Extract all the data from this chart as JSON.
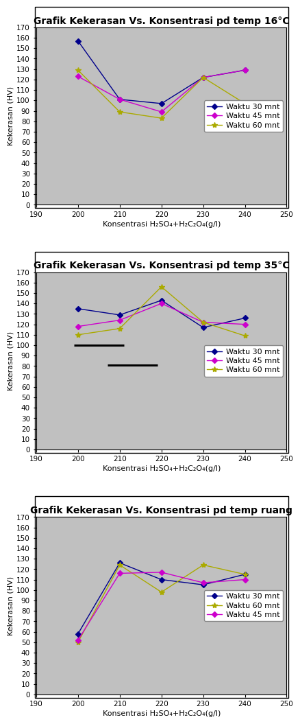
{
  "charts": [
    {
      "title": "Grafik Kekerasan Vs. Konsentrasi pd temp 16°C",
      "x": [
        200,
        210,
        220,
        230,
        240
      ],
      "series": [
        {
          "label": "Waktu 30 mnt",
          "color": "#00008B",
          "marker": "D",
          "values": [
            157,
            101,
            97,
            122,
            129
          ]
        },
        {
          "label": "Waktu 45 mnt",
          "color": "#CC00CC",
          "marker": "D",
          "values": [
            123,
            101,
            89,
            122,
            129
          ]
        },
        {
          "label": "Waktu 60 mnt",
          "color": "#AAAA00",
          "marker": "*",
          "values": [
            129,
            89,
            83,
            122,
            97
          ]
        }
      ],
      "extra_lines": [],
      "legend_order": [
        0,
        1,
        2
      ]
    },
    {
      "title": "Grafik Kekerasan Vs. Konsentrasi pd temp 35°C",
      "x": [
        200,
        210,
        220,
        230,
        240
      ],
      "series": [
        {
          "label": "Waktu 30 mnt",
          "color": "#00008B",
          "marker": "D",
          "values": [
            135,
            129,
            143,
            117,
            126
          ]
        },
        {
          "label": "Waktu 45 mnt",
          "color": "#CC00CC",
          "marker": "D",
          "values": [
            118,
            124,
            140,
            122,
            120
          ]
        },
        {
          "label": "Waktu 60 mnt",
          "color": "#AAAA00",
          "marker": "*",
          "values": [
            110,
            116,
            156,
            122,
            109
          ]
        }
      ],
      "extra_lines": [
        {
          "x": [
            199,
            211
          ],
          "y": [
            100,
            100
          ]
        },
        {
          "x": [
            207,
            219
          ],
          "y": [
            81,
            81
          ]
        }
      ],
      "legend_order": [
        0,
        1,
        2
      ]
    },
    {
      "title": "Grafik Kekerasan Vs. Konsentrasi pd temp ruang",
      "x": [
        200,
        210,
        220,
        230,
        240
      ],
      "series": [
        {
          "label": "Waktu 30 mnt",
          "color": "#00008B",
          "marker": "D",
          "values": [
            58,
            126,
            110,
            105,
            115
          ]
        },
        {
          "label": "Waktu 60 mnt",
          "color": "#AAAA00",
          "marker": "*",
          "values": [
            50,
            124,
            98,
            124,
            115
          ]
        },
        {
          "label": "Waktu 45 mnt",
          "color": "#CC00CC",
          "marker": "D",
          "values": [
            52,
            116,
            117,
            107,
            110
          ]
        }
      ],
      "extra_lines": [],
      "legend_order": [
        0,
        1,
        2
      ]
    }
  ],
  "xlabel": "Konsentrasi H₂SO₄+H₂C₂O₄(g/l)",
  "ylabel": "Kekerasan (HV)",
  "xlim": [
    190,
    250
  ],
  "xticks": [
    190,
    200,
    210,
    220,
    230,
    240,
    250
  ],
  "ylim": [
    0,
    170
  ],
  "yticks": [
    0,
    10,
    20,
    30,
    40,
    50,
    60,
    70,
    80,
    90,
    100,
    110,
    120,
    130,
    140,
    150,
    160,
    170
  ],
  "plot_bg": "#C0C0C0",
  "fig_bg": "#FFFFFF",
  "border_color": "#000000",
  "title_fontsize": 10,
  "label_fontsize": 8,
  "tick_fontsize": 7.5,
  "legend_fontsize": 8
}
